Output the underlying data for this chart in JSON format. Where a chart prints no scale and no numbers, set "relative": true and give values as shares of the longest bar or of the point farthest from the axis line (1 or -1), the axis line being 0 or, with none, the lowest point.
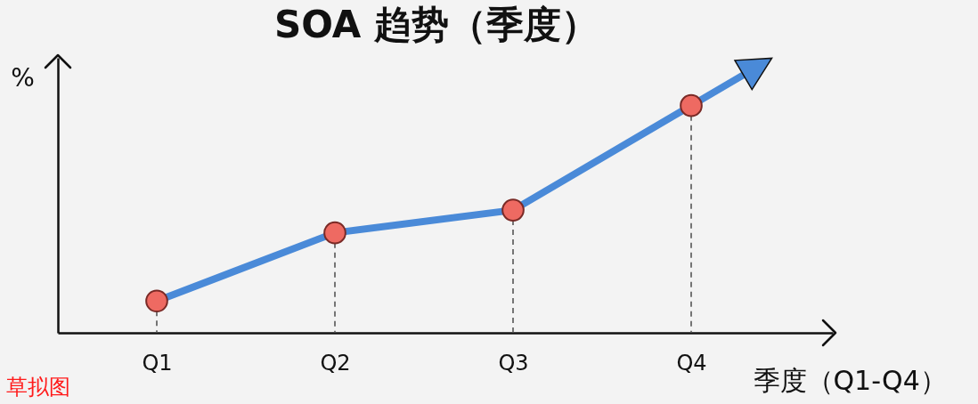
{
  "chart_data": {
    "type": "line",
    "title": "SOA 趋势（季度）",
    "xlabel": "季度（Q1-Q4）",
    "ylabel": "%",
    "categories": [
      "Q1",
      "Q2",
      "Q3",
      "Q4"
    ],
    "series": [
      {
        "color": "#4a8ad8",
        "values": [
          0.14,
          0.44,
          0.54,
          1
        ]
      }
    ],
    "relative": true,
    "marker": "circle",
    "line_style": "solid",
    "grid": false,
    "legend": false,
    "ref_lines": [
      {
        "axis": "x",
        "value": "Q1",
        "color": "#555555",
        "line_style": "dashed"
      },
      {
        "axis": "x",
        "value": "Q2",
        "color": "#555555",
        "line_style": "dashed"
      },
      {
        "axis": "x",
        "value": "Q3",
        "color": "#555555",
        "line_style": "dashed"
      },
      {
        "axis": "x",
        "value": "Q4",
        "color": "#555555",
        "line_style": "dashed"
      }
    ],
    "annotations": [
      "草拟图"
    ]
  }
}
